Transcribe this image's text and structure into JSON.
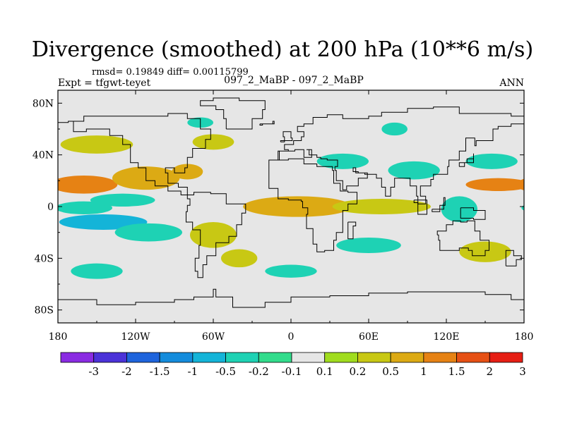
{
  "header": {
    "title": "Divergence (smoothed) at 200 hPa (10**6 m/s)",
    "stats": "rmsd= 0.19849 diff= 0.00115799",
    "experiment": "Expt = tfgwt-teyet",
    "case_label": "097_2_MaBP - 097_2_MaBP",
    "season": "ANN"
  },
  "chart_data": {
    "type": "heatmap",
    "title": "Divergence (smoothed) at 200 hPa (10**6 m/s)",
    "variable": "Divergence (smoothed)",
    "level": "200 hPa",
    "units": "10**6 m/s",
    "season": "ANN",
    "xlim": [
      -180,
      180
    ],
    "ylim": [
      -90,
      90
    ],
    "x_ticks": [
      {
        "value": -180,
        "label": "180"
      },
      {
        "value": -120,
        "label": "120W"
      },
      {
        "value": -60,
        "label": "60W"
      },
      {
        "value": 0,
        "label": "0"
      },
      {
        "value": 60,
        "label": "60E"
      },
      {
        "value": 120,
        "label": "120E"
      },
      {
        "value": 180,
        "label": "180"
      }
    ],
    "y_ticks": [
      {
        "value": 80,
        "label": "80N"
      },
      {
        "value": 40,
        "label": "40N"
      },
      {
        "value": 0,
        "label": "0"
      },
      {
        "value": -40,
        "label": "40S"
      },
      {
        "value": -80,
        "label": "80S"
      }
    ],
    "colorbar": {
      "levels": [
        "-3",
        "-2",
        "-1.5",
        "-1",
        "-0.5",
        "-0.2",
        "-0.1",
        "0.1",
        "0.2",
        "0.5",
        "1",
        "1.5",
        "2",
        "3"
      ],
      "colors": [
        "#8a2be2",
        "#4b32d8",
        "#1e64dc",
        "#148cdc",
        "#14b4d8",
        "#1ed2b4",
        "#32dc8c",
        "#e6e6e6",
        "#a0dc1e",
        "#c8c814",
        "#dcaa14",
        "#e68214",
        "#e65014",
        "#e61e14"
      ]
    },
    "field_blobs": [
      {
        "lon": -160,
        "lat": 17,
        "rx": 26,
        "ry": 7,
        "value": 1.2
      },
      {
        "lon": -112,
        "lat": 22,
        "rx": 26,
        "ry": 9,
        "value": 0.6
      },
      {
        "lon": -80,
        "lat": 27,
        "rx": 12,
        "ry": 6,
        "value": 0.6
      },
      {
        "lon": -150,
        "lat": 48,
        "rx": 28,
        "ry": 7,
        "value": 0.3
      },
      {
        "lon": -60,
        "lat": 50,
        "rx": 16,
        "ry": 6,
        "value": 0.3
      },
      {
        "lon": -160,
        "lat": -1,
        "rx": 22,
        "ry": 5,
        "value": -0.3
      },
      {
        "lon": -145,
        "lat": -12,
        "rx": 34,
        "ry": 6,
        "value": -0.8
      },
      {
        "lon": -110,
        "lat": -20,
        "rx": 26,
        "ry": 7,
        "value": -0.4
      },
      {
        "lon": -130,
        "lat": 5,
        "rx": 25,
        "ry": 5,
        "value": -0.3
      },
      {
        "lon": -60,
        "lat": -22,
        "rx": 18,
        "ry": 10,
        "value": 0.4
      },
      {
        "lon": -40,
        "lat": -40,
        "rx": 14,
        "ry": 7,
        "value": 0.3
      },
      {
        "lon": 5,
        "lat": 0,
        "rx": 42,
        "ry": 8,
        "value": 0.5
      },
      {
        "lon": 70,
        "lat": 0,
        "rx": 38,
        "ry": 6,
        "value": 0.4
      },
      {
        "lon": 40,
        "lat": 35,
        "rx": 20,
        "ry": 6,
        "value": -0.4
      },
      {
        "lon": 95,
        "lat": 28,
        "rx": 20,
        "ry": 7,
        "value": -0.3
      },
      {
        "lon": 160,
        "lat": 17,
        "rx": 25,
        "ry": 5,
        "value": 1.0
      },
      {
        "lon": 155,
        "lat": 35,
        "rx": 20,
        "ry": 6,
        "value": -0.3
      },
      {
        "lon": 130,
        "lat": -2,
        "rx": 14,
        "ry": 10,
        "value": -0.4
      },
      {
        "lon": 150,
        "lat": -35,
        "rx": 20,
        "ry": 8,
        "value": 0.3
      },
      {
        "lon": 60,
        "lat": -30,
        "rx": 25,
        "ry": 6,
        "value": -0.3
      },
      {
        "lon": -150,
        "lat": -50,
        "rx": 20,
        "ry": 6,
        "value": -0.3
      },
      {
        "lon": 0,
        "lat": -50,
        "rx": 20,
        "ry": 5,
        "value": -0.3
      },
      {
        "lon": 80,
        "lat": 60,
        "rx": 10,
        "ry": 5,
        "value": -0.3
      },
      {
        "lon": -70,
        "lat": 65,
        "rx": 10,
        "ry": 4,
        "value": -0.3
      }
    ]
  }
}
